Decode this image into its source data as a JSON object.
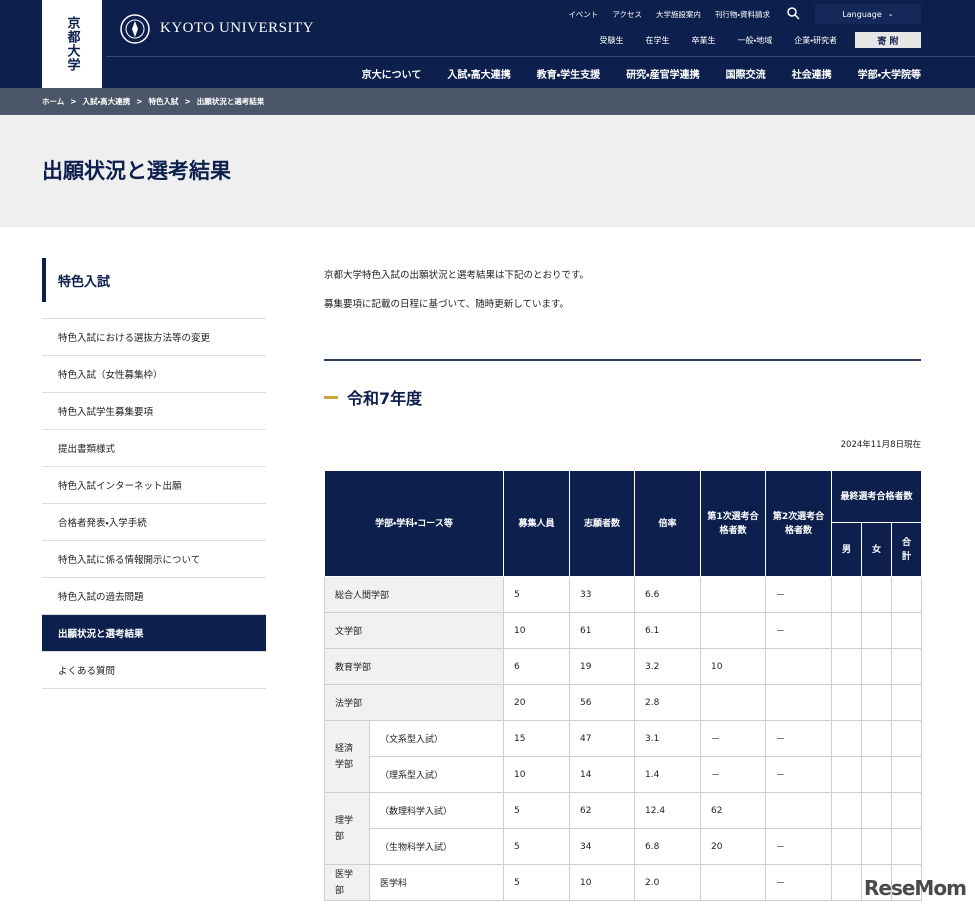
{
  "header": {
    "logo": "京都大学",
    "university": "KYOTO UNIVERSITY",
    "top_links": [
      "イベント",
      "アクセス",
      "大学施設案内",
      "刊行物・資料請求"
    ],
    "language": "Language",
    "audience_links": [
      "受験生",
      "在学生",
      "卒業生",
      "一般・地域",
      "企業・研究者"
    ],
    "donate": "寄 附",
    "nav": [
      "京大について",
      "入試・高大連携",
      "教育・学生支援",
      "研究・産官学連携",
      "国際交流",
      "社会連携",
      "学部・大学院等"
    ]
  },
  "breadcrumb": [
    "ホーム",
    "入試・高大連携",
    "特色入試",
    "出願状況と選考結果"
  ],
  "page_title": "出願状況と選考結果",
  "sidebar": {
    "title": "特色入試",
    "active_index": 8,
    "items": [
      "特色入試における選抜方法等の変更",
      "特色入試（女性募集枠）",
      "特色入試学生募集要項",
      "提出書類様式",
      "特色入試インターネット出願",
      "合格者発表・入学手続",
      "特色入試に係る情報開示について",
      "特色入試の過去問題",
      "出願状況と選考結果",
      "よくある質問"
    ]
  },
  "content": {
    "intro": [
      "京都大学特色入試の出願状況と選考結果は下記のとおりです。",
      "募集要項に記載の日程に基づいて、随時更新しています。"
    ],
    "section_title": "令和7年度",
    "as_of": "2024年11月8日現在"
  },
  "table": {
    "headers": [
      "学部・学科・コース等",
      "募集人員",
      "志願者数",
      "倍率",
      "第1次選考合格者数",
      "第2次選考合格者数",
      "最終選考合格者数"
    ],
    "final_headers": [
      "男",
      "女",
      "合計"
    ],
    "rows": [
      {
        "faculty": "総合人間学部",
        "cells": [
          "5",
          "33",
          "6.6",
          null,
          "－",
          null,
          null,
          null
        ]
      },
      {
        "faculty": "文学部",
        "cells": [
          "10",
          "61",
          "6.1",
          null,
          "－",
          null,
          null,
          null
        ]
      },
      {
        "faculty": "教育学部",
        "cells": [
          "6",
          "19",
          "3.2",
          "10",
          null,
          null,
          null,
          null
        ]
      },
      {
        "faculty": "法学部",
        "cells": [
          "20",
          "56",
          "2.8",
          null,
          null,
          null,
          null,
          null
        ]
      },
      {
        "faculty": "経済学部",
        "courses": [
          {
            "name": "（文系型入試）",
            "cells": [
              "15",
              "47",
              "3.1",
              "－",
              "－",
              null,
              null,
              null
            ]
          },
          {
            "name": "（理系型入試）",
            "cells": [
              "10",
              "14",
              "1.4",
              "－",
              "－",
              null,
              null,
              null
            ]
          }
        ]
      },
      {
        "faculty": "理学部",
        "courses": [
          {
            "name": "（数理科学入試）",
            "cells": [
              "5",
              "62",
              "12.4",
              "62",
              null,
              null,
              null,
              null
            ]
          },
          {
            "name": "（生物科学入試）",
            "cells": [
              "5",
              "34",
              "6.8",
              "20",
              "－",
              null,
              null,
              null
            ]
          }
        ]
      },
      {
        "faculty": "医学部",
        "courses": [
          {
            "name": "医学科",
            "cells": [
              "5",
              "10",
              "2.0",
              null,
              "－",
              null,
              null,
              null
            ]
          }
        ]
      }
    ]
  },
  "watermark": "ReseMom"
}
